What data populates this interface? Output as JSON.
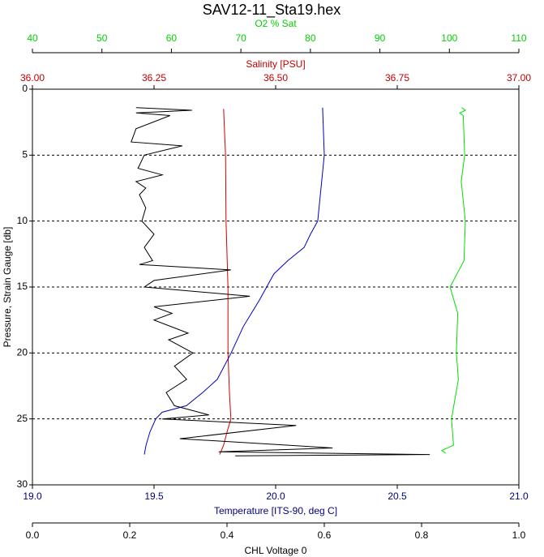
{
  "chart_data": {
    "type": "line",
    "title": "SAV12-11_Sta19.hex",
    "ylabel": "Pressure, Strain Gauge [db]",
    "ylim": [
      0,
      30
    ],
    "yticks": [
      0,
      5,
      10,
      15,
      20,
      25,
      30
    ],
    "grid": true,
    "y_inverted": true,
    "axes": [
      {
        "label": "O2 % Sat",
        "position": "top",
        "color": "#00d000",
        "lim": [
          40,
          110
        ],
        "ticks": [
          40,
          50,
          60,
          70,
          80,
          90,
          100,
          110
        ]
      },
      {
        "label": "Salinity [PSU]",
        "position": "top",
        "color": "#c00000",
        "lim": [
          36,
          37
        ],
        "ticks": [
          {
            "value": 36,
            "label": "36.00"
          },
          36.25,
          {
            "value": 36.5,
            "label": "36.50"
          },
          36.75,
          {
            "value": 37,
            "label": "37.00"
          }
        ]
      },
      {
        "label": "Temperature [ITS-90, deg C]",
        "position": "bottom",
        "color": "#000080",
        "lim": [
          19,
          21
        ],
        "ticks": [
          {
            "value": 19,
            "label": "19.0"
          },
          19.5,
          {
            "value": 20,
            "label": "20.0"
          },
          20.5,
          {
            "value": 21,
            "label": "21.0"
          }
        ]
      },
      {
        "label": "CHL Voltage 0",
        "position": "bottom",
        "color": "#000000",
        "lim": [
          0,
          1
        ],
        "ticks": [
          {
            "value": 0,
            "label": "0.0"
          },
          0.2,
          0.4,
          0.6,
          0.8,
          {
            "value": 1,
            "label": "1.0"
          }
        ]
      }
    ],
    "series": [
      {
        "axis": 0,
        "color": "#00e000",
        "pressure": [
          1.4,
          1.6,
          1.8,
          2,
          5,
          7,
          10,
          13,
          15,
          17,
          20,
          22,
          25,
          27,
          27.4,
          27.6
        ],
        "values": [
          101.8,
          102.3,
          101.5,
          102,
          102.2,
          101.7,
          102.3,
          102.1,
          100.1,
          101.2,
          101,
          101.3,
          100.3,
          100.6,
          98.9,
          99.5
        ]
      },
      {
        "axis": 1,
        "color": "#d00000",
        "pressure": [
          1.5,
          5,
          10,
          15,
          20,
          23,
          25,
          26,
          27,
          27.7
        ],
        "values": [
          36.393,
          36.397,
          36.398,
          36.402,
          36.402,
          36.405,
          36.408,
          36.4,
          36.393,
          36.385
        ]
      },
      {
        "axis": 2,
        "color": "#0000c0",
        "pressure": [
          1.4,
          5,
          10,
          11,
          12,
          13,
          14,
          16,
          18,
          20,
          22,
          23,
          24,
          24.5,
          25,
          26,
          27,
          27.7
        ],
        "values": [
          20.193,
          20.2,
          20.173,
          20.143,
          20.117,
          20.05,
          19.993,
          19.933,
          19.867,
          19.817,
          19.76,
          19.7,
          19.633,
          19.533,
          19.507,
          19.483,
          19.467,
          19.46
        ]
      },
      {
        "axis": 3,
        "color": "#000000",
        "pressure": [
          1.4,
          1.6,
          1.8,
          2,
          3,
          4,
          4.3,
          5,
          6,
          6.5,
          7,
          7.5,
          8,
          9,
          10,
          11,
          12,
          13,
          13.3,
          13.7,
          14.5,
          15,
          15.7,
          16.5,
          17,
          17.5,
          18.5,
          19,
          20,
          21,
          22,
          23,
          24,
          24.7,
          25,
          25.5,
          26.5,
          27.2,
          27.5,
          27.7,
          27.8
        ],
        "values": [
          0.213,
          0.328,
          0.213,
          0.283,
          0.213,
          0.203,
          0.308,
          0.23,
          0.217,
          0.267,
          0.213,
          0.233,
          0.22,
          0.233,
          0.225,
          0.25,
          0.23,
          0.247,
          0.22,
          0.408,
          0.25,
          0.23,
          0.447,
          0.25,
          0.287,
          0.25,
          0.32,
          0.28,
          0.33,
          0.292,
          0.317,
          0.275,
          0.292,
          0.363,
          0.267,
          0.542,
          0.303,
          0.617,
          0.383,
          0.817,
          0.417
        ]
      }
    ]
  }
}
